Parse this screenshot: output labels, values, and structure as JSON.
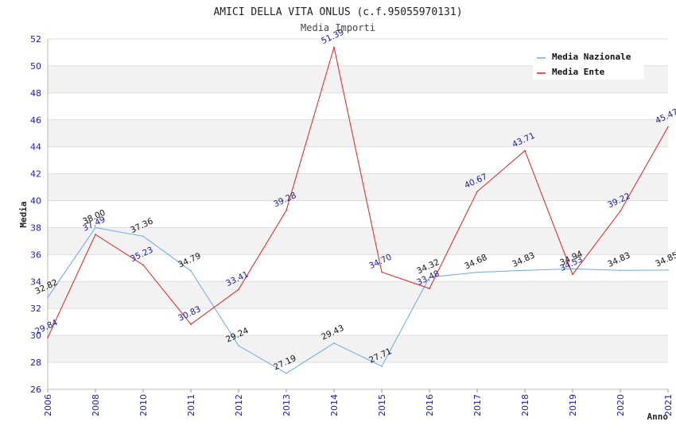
{
  "chart_data": {
    "type": "line",
    "title": "AMICI DELLA VITA ONLUS (c.f.95055970131)",
    "subtitle": "Media Importi",
    "xlabel": "Anno",
    "ylabel": "Media",
    "ylim": [
      26,
      52
    ],
    "y_ticks": [
      26,
      28,
      30,
      32,
      34,
      36,
      38,
      40,
      42,
      44,
      46,
      48,
      50,
      52
    ],
    "categories": [
      "2006",
      "2008",
      "2010",
      "2011",
      "2012",
      "2013",
      "2014",
      "2015",
      "2016",
      "2017",
      "2018",
      "2019",
      "2020",
      "2021"
    ],
    "grid": true,
    "legend_position": "top-right",
    "series": [
      {
        "name": "Media Nazionale",
        "color": "#6fa8e8",
        "label_color": "#111111",
        "values": [
          32.82,
          38.0,
          37.36,
          34.79,
          29.24,
          27.19,
          29.43,
          27.71,
          34.32,
          34.68,
          34.83,
          34.94,
          34.83,
          34.85
        ],
        "labels": [
          "32.82",
          "38.00",
          "37.36",
          "34.79",
          "29.24",
          "27.19",
          "29.43",
          "27.71",
          "34.32",
          "34.68",
          "34.83",
          "34.94",
          "34.83",
          "34.85"
        ]
      },
      {
        "name": "Media Ente",
        "color": "#e02020",
        "label_color": "#1a1a99",
        "values": [
          29.84,
          37.49,
          35.23,
          30.83,
          33.41,
          39.28,
          51.39,
          34.7,
          33.48,
          40.67,
          43.71,
          34.53,
          39.22,
          45.47
        ],
        "labels": [
          "29.84",
          "37.49",
          "35.23",
          "30.83",
          "33.41",
          "39.28",
          "51.39",
          "34.70",
          "33.48",
          "40.67",
          "43.71",
          "34.53",
          "39.22",
          "45.47"
        ]
      }
    ]
  }
}
